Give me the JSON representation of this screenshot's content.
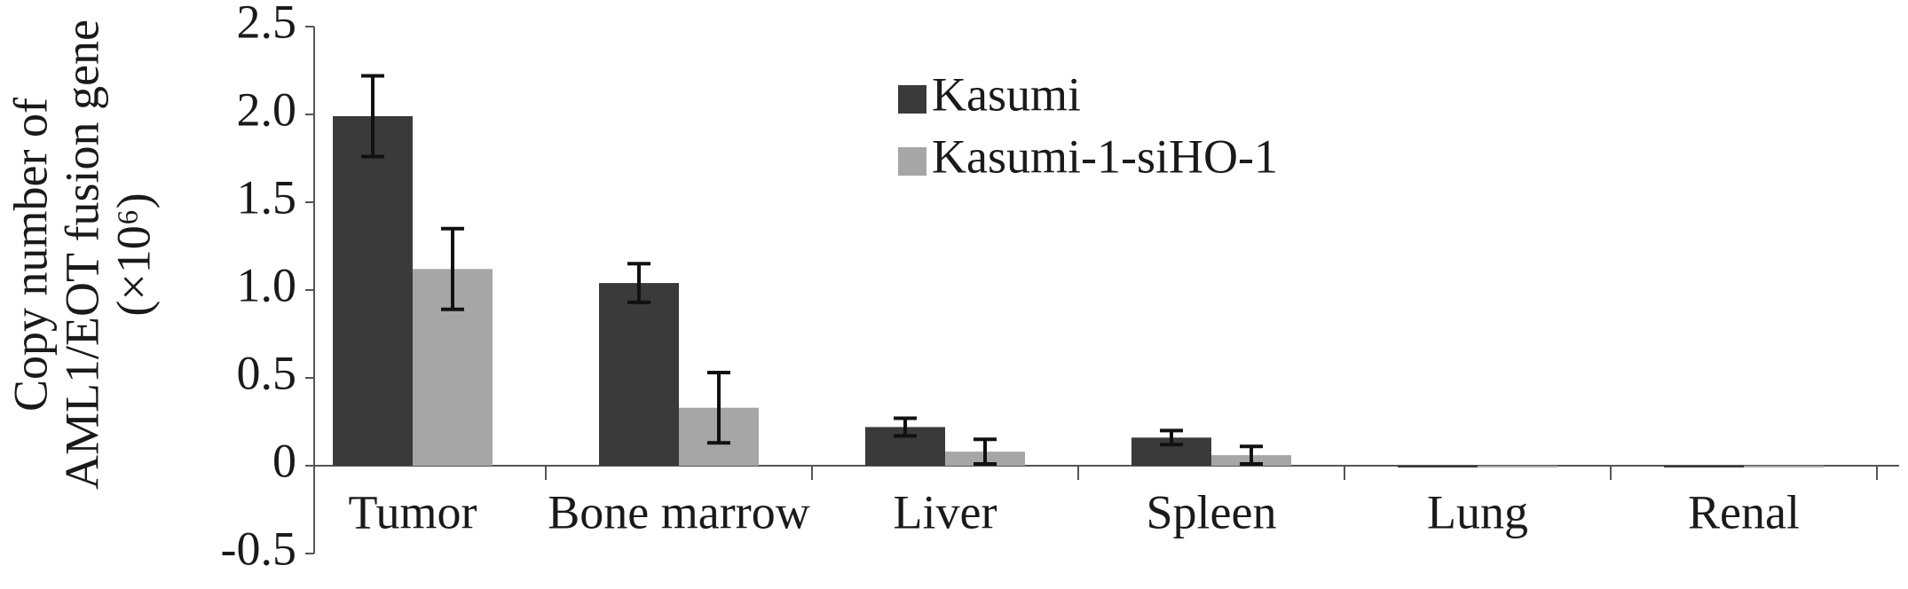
{
  "chart_data": {
    "type": "bar",
    "y_label": [
      "Copy number of",
      "AML1/EOT fusion gene",
      "(×10⁶)"
    ],
    "categories": [
      "Tumor",
      "Bone marrow",
      "Liver",
      "Spleen",
      "Lung",
      "Renal"
    ],
    "series": [
      {
        "name": "Kasumi",
        "color": "#3a3a3a",
        "values": [
          1.99,
          1.04,
          0.22,
          0.16,
          0,
          0
        ],
        "errors": [
          0.23,
          0.11,
          0.05,
          0.04,
          null,
          null
        ]
      },
      {
        "name": "Kasumi-1-siHO-1",
        "color": "#a6a6a6",
        "values": [
          1.12,
          0.33,
          0.08,
          0.06,
          0,
          0
        ],
        "errors": [
          0.23,
          0.2,
          0.07,
          0.05,
          null,
          null
        ]
      }
    ],
    "ylim": [
      -0.5,
      2.5
    ],
    "yticks": [
      -0.5,
      0,
      0.5,
      {
        "value": 1,
        "label": "1.0"
      },
      1.5,
      {
        "value": 2,
        "label": "2.0"
      },
      2.5
    ],
    "legend": "top"
  }
}
